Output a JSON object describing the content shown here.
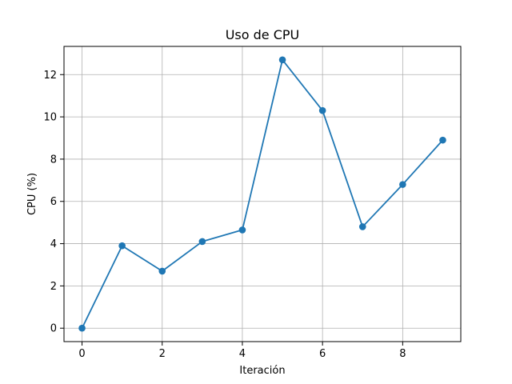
{
  "chart_data": {
    "type": "line",
    "title": "Uso de CPU",
    "xlabel": "Iteración",
    "ylabel": "CPU (%)",
    "x": [
      0,
      1,
      2,
      3,
      4,
      5,
      6,
      7,
      8,
      9
    ],
    "series": [
      {
        "values": [
          0.0,
          3.9,
          2.7,
          4.1,
          4.65,
          12.7,
          10.3,
          4.8,
          6.8,
          8.9
        ],
        "color": "#1f77b4",
        "marker": "circle"
      }
    ],
    "xlim": [
      -0.45,
      9.45
    ],
    "ylim": [
      -0.635,
      13.335
    ],
    "xticks": [
      0,
      2,
      4,
      6,
      8
    ],
    "yticks": [
      0,
      2,
      4,
      6,
      8,
      10,
      12
    ],
    "grid": true,
    "legend": "none"
  }
}
